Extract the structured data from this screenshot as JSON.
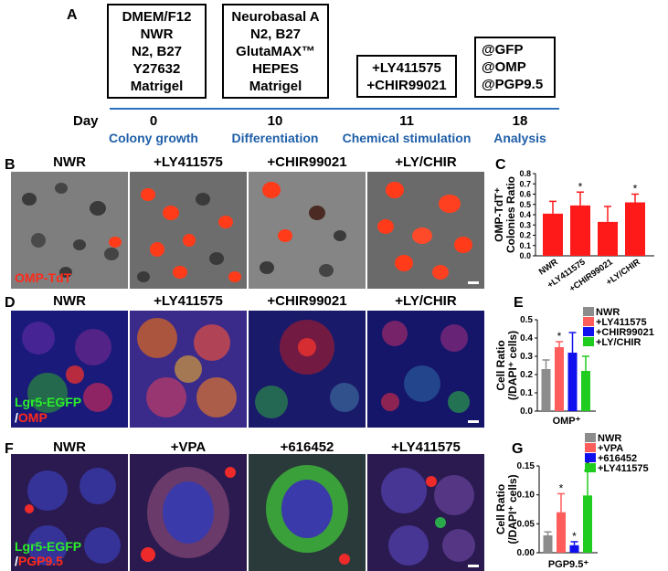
{
  "panelA": {
    "label": "A",
    "boxes": [
      {
        "lines": [
          "DMEM/F12",
          "NWR",
          "N2, B27",
          "Y27632",
          "Matrigel"
        ]
      },
      {
        "lines": [
          "Neurobasal A",
          "N2, B27",
          "GlutaMAX™",
          "HEPES",
          "Matrigel"
        ]
      },
      {
        "lines": [
          "+LY411575",
          "+CHIR99021"
        ]
      },
      {
        "lines": [
          "@GFP",
          "@OMP",
          "@PGP9.5"
        ]
      }
    ],
    "day_label": "Day",
    "days": [
      "0",
      "10",
      "11",
      "18"
    ],
    "stages": [
      "Colony growth",
      "Differentiation",
      "Chemical stimulation",
      "Analysis"
    ],
    "timeline_color": "#2a72c0"
  },
  "panelB": {
    "label": "B",
    "columns": [
      "NWR",
      "+LY411575",
      "+CHIR99021",
      "+LY/CHIR"
    ],
    "overlay": "OMP-TdT"
  },
  "panelC": {
    "label": "C"
  },
  "panelD": {
    "label": "D",
    "columns": [
      "NWR",
      "+LY411575",
      "+CHIR99021",
      "+LY/CHIR"
    ],
    "overlay_line1": "Lgr5-EGFP",
    "overlay_slash": "/",
    "overlay_line2": "OMP"
  },
  "panelE": {
    "label": "E"
  },
  "panelF": {
    "label": "F",
    "columns": [
      "NWR",
      "+VPA",
      "+616452",
      "+LY411575"
    ],
    "overlay_line1": "Lgr5-EGFP",
    "overlay_slash": "/",
    "overlay_line2": "PGP9.5"
  },
  "panelG": {
    "label": "G"
  },
  "colors": {
    "red": "#ff1a1a",
    "grey": "#8c8c8c",
    "blue": "#1010ee",
    "green": "#1fcc1f",
    "salmon": "#ff5c5c"
  },
  "chart_data": [
    {
      "type": "bar",
      "panel": "C",
      "ylabel": "OMP-TdT⁺ Colonies Ratio",
      "categories": [
        "NWR",
        "+LY411575",
        "+CHIR99021",
        "+LY/CHIR"
      ],
      "values": [
        0.41,
        0.49,
        0.33,
        0.52
      ],
      "errors": [
        0.12,
        0.13,
        0.15,
        0.08
      ],
      "significant": [
        "",
        "*",
        "",
        "*"
      ],
      "ylim": [
        0,
        0.8
      ],
      "yticks": [
        "0.0",
        "0.1",
        "0.2",
        "0.3",
        "0.4",
        "0.5",
        "0.6",
        "0.7",
        "0.8"
      ],
      "bar_colors": [
        "#ff1a1a",
        "#ff1a1a",
        "#ff1a1a",
        "#ff1a1a"
      ]
    },
    {
      "type": "bar",
      "panel": "E",
      "ylabel": "Cell Ratio (/DAPI⁺ cells)",
      "xlabel": "OMP⁺",
      "legend": [
        "NWR",
        "+LY411575",
        "+CHIR99021",
        "+LY/CHIR"
      ],
      "values": [
        0.23,
        0.35,
        0.32,
        0.22
      ],
      "errors": [
        0.05,
        0.03,
        0.11,
        0.08
      ],
      "significant": [
        "",
        "*",
        "",
        ""
      ],
      "ylim": [
        0,
        0.5
      ],
      "yticks": [
        "0.0",
        "0.1",
        "0.2",
        "0.3",
        "0.4",
        "0.5"
      ],
      "bar_colors": [
        "#8c8c8c",
        "#ff5c5c",
        "#1010ee",
        "#1fcc1f"
      ]
    },
    {
      "type": "bar",
      "panel": "G",
      "ylabel": "Cell Ratio (/DAPI⁺ cells)",
      "xlabel": "PGP9.5⁺",
      "legend": [
        "NWR",
        "+VPA",
        "+616452",
        "+LY411575"
      ],
      "values": [
        0.03,
        0.07,
        0.013,
        0.099
      ],
      "errors": [
        0.006,
        0.032,
        0.006,
        0.043
      ],
      "significant": [
        "",
        "*",
        "*",
        "*"
      ],
      "ylim": [
        0,
        0.15
      ],
      "yticks": [
        "0.00",
        "0.05",
        "0.10",
        "0.15"
      ],
      "bar_colors": [
        "#8c8c8c",
        "#ff5c5c",
        "#1010ee",
        "#1fcc1f"
      ]
    }
  ]
}
